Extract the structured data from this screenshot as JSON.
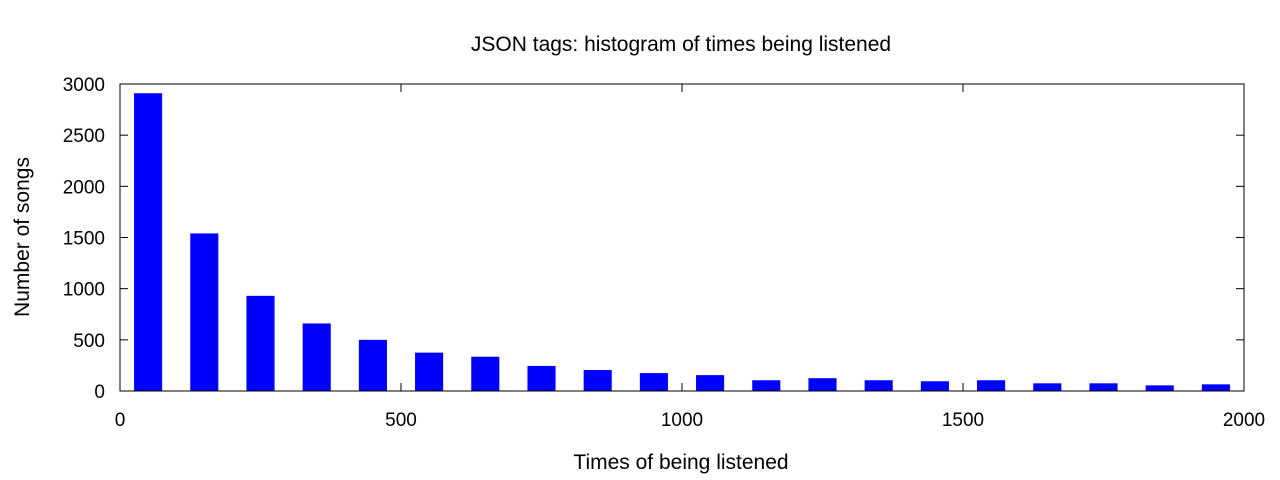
{
  "chart_data": {
    "type": "bar",
    "title": "JSON tags: histogram of times being listened",
    "xlabel": "Times of being listened",
    "ylabel": "Number of songs",
    "xlim": [
      0,
      2000
    ],
    "ylim": [
      0,
      3000
    ],
    "xticks": [
      0,
      500,
      1000,
      1500,
      2000
    ],
    "yticks": [
      0,
      500,
      1000,
      1500,
      2000,
      2500,
      3000
    ],
    "bin_width": 100,
    "bar_width": 50,
    "x": [
      50,
      150,
      250,
      350,
      450,
      550,
      650,
      750,
      850,
      950,
      1050,
      1150,
      1250,
      1350,
      1450,
      1550,
      1650,
      1750,
      1850,
      1950
    ],
    "values": [
      2910,
      1540,
      930,
      660,
      500,
      375,
      335,
      245,
      205,
      175,
      155,
      105,
      125,
      105,
      95,
      105,
      75,
      75,
      55,
      65
    ],
    "bar_color": "#0000ff",
    "grid": false,
    "legend": "none"
  }
}
